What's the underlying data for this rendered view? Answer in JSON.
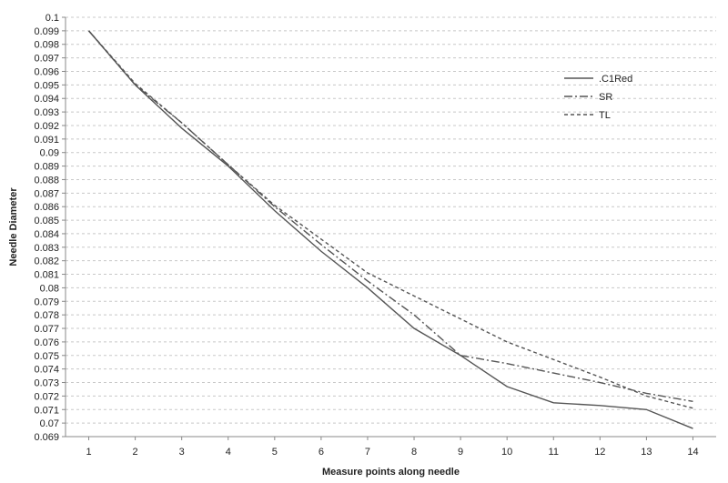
{
  "chart_data": {
    "type": "line",
    "x": [
      1,
      2,
      3,
      4,
      5,
      6,
      7,
      8,
      9,
      10,
      11,
      12,
      13,
      14
    ],
    "xlabel": "Measure points along needle",
    "ylabel": "Needle Diameter",
    "ylim": [
      0.069,
      0.1
    ],
    "ytick_step": 0.001,
    "grid": "horizontal dashed",
    "legend_position": "top-right",
    "series": [
      {
        "name": ".C1Red",
        "style": "solid",
        "color": "#555555",
        "values": [
          0.099,
          0.095,
          0.0918,
          0.089,
          0.0857,
          0.0827,
          0.08,
          0.077,
          0.075,
          0.0727,
          0.0715,
          0.0713,
          0.071,
          0.0696
        ]
      },
      {
        "name": "SR",
        "style": "dashdot",
        "color": "#555555",
        "values": [
          0.099,
          0.095,
          0.0922,
          0.0891,
          0.086,
          0.0832,
          0.0805,
          0.078,
          0.075,
          0.0744,
          0.0737,
          0.073,
          0.0722,
          0.0716
        ]
      },
      {
        "name": "TL",
        "style": "dashed",
        "color": "#555555",
        "values": [
          0.099,
          0.0951,
          0.0922,
          0.0891,
          0.0861,
          0.0836,
          0.0811,
          0.0794,
          0.0777,
          0.076,
          0.0747,
          0.0734,
          0.072,
          0.0711
        ]
      }
    ]
  }
}
